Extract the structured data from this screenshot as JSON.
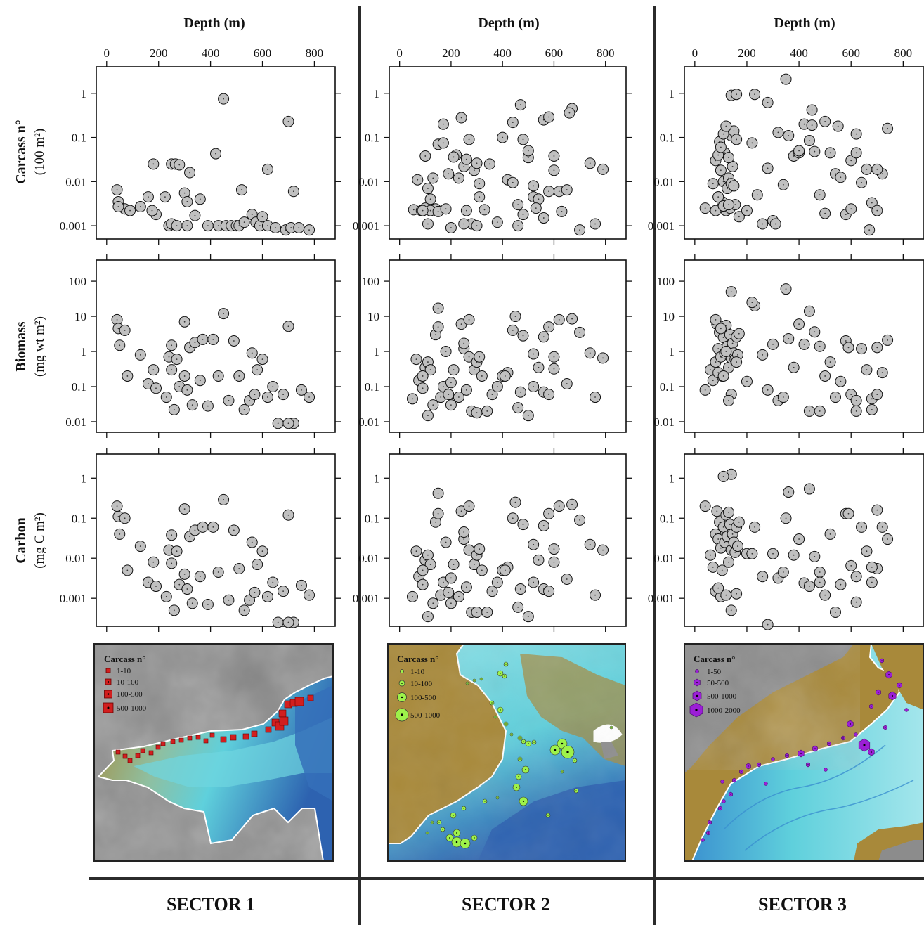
{
  "figure": {
    "x_axis_title": "Depth (m)",
    "x_ticks": [
      "0",
      "200",
      "400",
      "600",
      "800"
    ],
    "sector_labels": [
      "SECTOR 1",
      "SECTOR 2",
      "SECTOR 3"
    ],
    "rows": [
      {
        "label_bold": "Carcass n°",
        "label_unit": "(100 m²)"
      },
      {
        "label_bold": "Biomass",
        "label_unit": "(mg wt m²)"
      },
      {
        "label_bold": "Carbon",
        "label_unit": "(mg C m²)"
      }
    ],
    "map_legend_title": "Carcass n°",
    "map_legends": [
      [
        "1-10",
        "10-100",
        "100-500",
        "500-1000"
      ],
      [
        "1-10",
        "10-100",
        "100-500",
        "500-1000"
      ],
      [
        "1-50",
        "50-500",
        "500-1000",
        "1000-2000"
      ]
    ],
    "colors": {
      "marker_fill": "#c0c0c0",
      "sector1_marker": "#d21f1f",
      "sector2_marker": "#9df24a",
      "sector3_marker": "#9b1fd6",
      "map_land_gray": "#8c8c8c",
      "map_shelf": "#a8893a",
      "map_slope": "#5fd0dc",
      "map_deep": "#2d62b0"
    }
  },
  "chart_data": [
    {
      "type": "scatter",
      "sector": "SECTOR 1",
      "row": "Carcass",
      "ylabel": "Carcass n° (100 m²)",
      "xlabel": "Depth (m)",
      "xlim": [
        -40,
        880
      ],
      "ylim": [
        0.0005,
        4
      ],
      "yscale": "log",
      "yticks": [
        "1",
        "0.1",
        "0.01",
        "0.001"
      ],
      "x": [
        40,
        45,
        70,
        45,
        90,
        130,
        160,
        190,
        175,
        225,
        250,
        265,
        280,
        300,
        310,
        320,
        240,
        250,
        270,
        180,
        310,
        340,
        360,
        390,
        430,
        460,
        480,
        500,
        510,
        530,
        560,
        575,
        590,
        600,
        620,
        650,
        690,
        710,
        740,
        780,
        620,
        720,
        700,
        420,
        520,
        450
      ],
      "y": [
        0.0065,
        0.0035,
        0.0024,
        0.0027,
        0.0022,
        0.0027,
        0.0045,
        0.0018,
        0.0022,
        0.0045,
        0.025,
        0.025,
        0.024,
        0.0055,
        0.0035,
        0.016,
        0.001,
        0.0011,
        0.001,
        0.025,
        0.001,
        0.0017,
        0.004,
        0.001,
        0.001,
        0.001,
        0.001,
        0.001,
        0.001,
        0.0012,
        0.0018,
        0.0012,
        0.001,
        0.0016,
        0.001,
        0.0009,
        0.0008,
        0.0009,
        0.0009,
        0.0008,
        0.019,
        0.006,
        0.23,
        0.043,
        0.0065,
        0.75
      ]
    },
    {
      "type": "scatter",
      "sector": "SECTOR 2",
      "row": "Carcass",
      "ylabel": "Carcass n° (100 m²)",
      "xlabel": "Depth (m)",
      "xlim": [
        -40,
        880
      ],
      "ylim": [
        0.0005,
        4
      ],
      "yscale": "log",
      "yticks": [
        "1",
        "0.1",
        "0.01",
        "0.001"
      ],
      "x": [
        55,
        70,
        85,
        100,
        110,
        120,
        140,
        150,
        170,
        190,
        200,
        220,
        240,
        250,
        260,
        270,
        280,
        300,
        310,
        330,
        350,
        380,
        400,
        420,
        440,
        460,
        480,
        500,
        520,
        540,
        560,
        580,
        600,
        620,
        650,
        670,
        700,
        740,
        760,
        790,
        100,
        120,
        150,
        180,
        230,
        260,
        290,
        310,
        460,
        520,
        580,
        560,
        90,
        130,
        170,
        210,
        250,
        300,
        470,
        500,
        530,
        600,
        630,
        660,
        110,
        440,
        480
      ],
      "y": [
        0.0023,
        0.011,
        0.0022,
        0.0025,
        0.007,
        0.004,
        0.0024,
        0.07,
        0.2,
        0.015,
        0.0009,
        0.04,
        0.28,
        0.022,
        0.0022,
        0.09,
        0.0011,
        0.001,
        0.0045,
        0.0023,
        0.025,
        0.0012,
        0.1,
        0.011,
        0.22,
        0.001,
        0.09,
        0.035,
        0.0045,
        0.004,
        0.25,
        0.29,
        0.018,
        0.006,
        0.0065,
        0.45,
        0.0008,
        0.026,
        0.0011,
        0.019,
        0.038,
        0.0022,
        0.0021,
        0.0024,
        0.012,
        0.032,
        0.018,
        0.009,
        0.003,
        0.008,
        0.006,
        0.0015,
        0.0022,
        0.012,
        0.075,
        0.036,
        0.0011,
        0.026,
        0.55,
        0.05,
        0.0025,
        0.038,
        0.0021,
        0.36,
        0.0011,
        0.0095,
        0.0018
      ]
    },
    {
      "type": "scatter",
      "sector": "SECTOR 3",
      "row": "Carcass",
      "ylabel": "Carcass n° (100 m²)",
      "xlabel": "Depth (m)",
      "xlim": [
        -40,
        880
      ],
      "ylim": [
        0.0005,
        4
      ],
      "yscale": "log",
      "yticks": [
        "1",
        "0.1",
        "0.01",
        "0.001"
      ],
      "x": [
        40,
        70,
        80,
        90,
        95,
        100,
        105,
        110,
        115,
        120,
        125,
        130,
        135,
        140,
        145,
        150,
        155,
        160,
        80,
        90,
        100,
        110,
        120,
        130,
        140,
        150,
        170,
        200,
        220,
        240,
        260,
        280,
        300,
        320,
        340,
        360,
        380,
        400,
        420,
        440,
        460,
        480,
        500,
        520,
        540,
        560,
        580,
        600,
        620,
        640,
        660,
        680,
        700,
        720,
        740,
        350,
        450,
        230,
        140,
        160,
        280,
        310,
        400,
        500,
        550,
        620,
        670,
        700,
        90,
        110,
        130,
        600,
        450
      ],
      "y": [
        0.0025,
        0.009,
        0.03,
        0.0045,
        0.08,
        0.018,
        0.0035,
        0.01,
        0.045,
        0.0022,
        0.007,
        0.012,
        0.0025,
        0.11,
        0.022,
        0.14,
        0.003,
        0.09,
        0.0022,
        0.04,
        0.06,
        0.12,
        0.18,
        0.035,
        0.009,
        0.008,
        0.0016,
        0.0022,
        0.075,
        0.005,
        0.0011,
        0.02,
        0.0013,
        0.13,
        0.0085,
        0.11,
        0.038,
        0.045,
        0.2,
        0.085,
        0.048,
        0.005,
        0.0019,
        0.045,
        0.015,
        0.0125,
        0.0018,
        0.03,
        0.045,
        0.0095,
        0.019,
        0.0033,
        0.0022,
        0.015,
        0.16,
        2.1,
        0.42,
        0.95,
        0.9,
        0.95,
        0.62,
        0.0011,
        0.05,
        0.23,
        0.18,
        0.12,
        0.0008,
        0.019,
        0.0045,
        0.0028,
        0.003,
        0.0024,
        0.19
      ]
    },
    {
      "type": "scatter",
      "sector": "SECTOR 1",
      "row": "Biomass",
      "ylabel": "Biomass (mg wt m²)",
      "xlabel": "Depth (m)",
      "xlim": [
        -40,
        880
      ],
      "ylim": [
        0.005,
        400
      ],
      "yscale": "log",
      "yticks": [
        "100",
        "10",
        "1",
        "0.1",
        "0.01"
      ],
      "x": [
        40,
        45,
        50,
        70,
        80,
        130,
        160,
        180,
        190,
        230,
        240,
        250,
        260,
        270,
        280,
        300,
        310,
        320,
        340,
        360,
        370,
        390,
        410,
        430,
        450,
        470,
        490,
        510,
        530,
        550,
        560,
        570,
        580,
        600,
        620,
        640,
        660,
        680,
        700,
        720,
        750,
        780,
        300,
        250,
        700,
        330
      ],
      "y": [
        8,
        4.5,
        1.5,
        4,
        0.2,
        0.8,
        0.12,
        0.3,
        0.09,
        0.05,
        0.7,
        1.5,
        0.022,
        0.6,
        0.1,
        0.2,
        0.08,
        1.3,
        1.8,
        0.15,
        2.2,
        0.028,
        2.2,
        0.2,
        12,
        0.04,
        2,
        0.2,
        0.022,
        0.04,
        0.9,
        0.06,
        0.3,
        0.6,
        0.05,
        0.1,
        0.009,
        0.06,
        5.2,
        0.009,
        0.08,
        0.05,
        7,
        0.3,
        0.009,
        0.03
      ]
    },
    {
      "type": "scatter",
      "sector": "SECTOR 2",
      "row": "Biomass",
      "ylabel": "Biomass (mg wt m²)",
      "xlabel": "Depth (m)",
      "xlim": [
        -40,
        880
      ],
      "ylim": [
        0.005,
        400
      ],
      "yscale": "log",
      "yticks": [
        "100",
        "10",
        "1",
        "0.1",
        "0.01"
      ],
      "x": [
        50,
        65,
        75,
        90,
        100,
        110,
        120,
        140,
        150,
        160,
        170,
        180,
        190,
        200,
        210,
        230,
        240,
        250,
        260,
        270,
        280,
        290,
        300,
        320,
        340,
        360,
        380,
        400,
        420,
        440,
        460,
        480,
        500,
        520,
        540,
        560,
        580,
        600,
        620,
        650,
        670,
        700,
        740,
        760,
        790,
        150,
        270,
        450,
        580,
        250,
        300,
        470,
        520,
        600,
        110,
        130,
        90,
        200,
        310,
        410,
        560
      ],
      "y": [
        0.045,
        0.6,
        0.15,
        0.09,
        0.35,
        0.5,
        0.3,
        3,
        17,
        0.05,
        0.1,
        1,
        0.06,
        0.13,
        0.3,
        0.05,
        6,
        1.2,
        0.08,
        0.7,
        0.02,
        0.3,
        0.018,
        0.2,
        0.02,
        0.06,
        0.1,
        0.2,
        0.25,
        4,
        0.025,
        2.8,
        0.015,
        0.85,
        0.35,
        0.07,
        0.06,
        0.7,
        8,
        0.12,
        8.5,
        3.5,
        0.9,
        0.05,
        0.65,
        5,
        8,
        10,
        5,
        1.7,
        0.5,
        0.07,
        0.1,
        0.32,
        0.015,
        0.03,
        0.2,
        0.03,
        0.7,
        0.2,
        2.6
      ]
    },
    {
      "type": "scatter",
      "sector": "SECTOR 3",
      "row": "Biomass",
      "ylabel": "Biomass (mg wt m²)",
      "xlabel": "Depth (m)",
      "xlim": [
        -40,
        880
      ],
      "ylim": [
        0.005,
        400
      ],
      "yscale": "log",
      "yticks": [
        "100",
        "10",
        "1",
        "0.1",
        "0.01"
      ],
      "x": [
        40,
        60,
        70,
        80,
        85,
        90,
        95,
        100,
        105,
        110,
        115,
        120,
        125,
        130,
        135,
        140,
        145,
        150,
        155,
        160,
        165,
        170,
        80,
        100,
        120,
        140,
        160,
        200,
        230,
        260,
        280,
        300,
        320,
        340,
        360,
        380,
        400,
        420,
        440,
        460,
        480,
        500,
        520,
        540,
        560,
        580,
        600,
        620,
        640,
        660,
        680,
        700,
        720,
        740,
        140,
        350,
        220,
        440,
        130,
        90,
        110,
        680,
        590,
        620,
        700,
        480
      ],
      "y": [
        0.08,
        0.3,
        0.15,
        0.5,
        6,
        1.2,
        3.5,
        0.7,
        0.2,
        2.5,
        0.9,
        5.5,
        1.4,
        0.35,
        3,
        0.65,
        1.7,
        0.9,
        0.6,
        2.6,
        0.8,
        3.2,
        8,
        4.5,
        1,
        0.06,
        0.5,
        0.14,
        20,
        0.8,
        0.08,
        1.6,
        0.04,
        0.05,
        2.3,
        0.35,
        6,
        1.6,
        14,
        3.6,
        1.4,
        0.2,
        0.5,
        0.05,
        0.14,
        2,
        0.06,
        0.02,
        1.2,
        0.3,
        0.045,
        0.06,
        0.25,
        2.1,
        50,
        60,
        25,
        0.02,
        0.04,
        0.25,
        0.2,
        0.022,
        1.3,
        0.04,
        1.3,
        0.02
      ]
    },
    {
      "type": "scatter",
      "sector": "SECTOR 1",
      "row": "Carbon",
      "ylabel": "Carbon (mg C m²)",
      "xlabel": "Depth (m)",
      "xlim": [
        -40,
        880
      ],
      "ylim": [
        0.0002,
        4
      ],
      "yscale": "log",
      "yticks": [
        "1",
        "0.1",
        "0.01",
        "0.001"
      ],
      "x": [
        40,
        45,
        50,
        70,
        80,
        130,
        160,
        180,
        190,
        230,
        240,
        250,
        260,
        270,
        280,
        300,
        310,
        320,
        340,
        360,
        370,
        390,
        410,
        430,
        450,
        470,
        490,
        510,
        530,
        550,
        560,
        570,
        580,
        600,
        620,
        640,
        660,
        680,
        700,
        720,
        750,
        780,
        300,
        250,
        700,
        330
      ],
      "y": [
        0.2,
        0.11,
        0.04,
        0.1,
        0.005,
        0.02,
        0.0025,
        0.008,
        0.002,
        0.0011,
        0.016,
        0.038,
        0.0005,
        0.015,
        0.0022,
        0.004,
        0.0017,
        0.035,
        0.05,
        0.0035,
        0.06,
        0.0007,
        0.06,
        0.0045,
        0.29,
        0.0009,
        0.05,
        0.0055,
        0.0005,
        0.0009,
        0.025,
        0.0014,
        0.007,
        0.015,
        0.0011,
        0.0025,
        0.00025,
        0.0015,
        0.12,
        0.00025,
        0.0021,
        0.0012,
        0.17,
        0.0075,
        0.00025,
        0.00075
      ]
    },
    {
      "type": "scatter",
      "sector": "SECTOR 2",
      "row": "Carbon",
      "ylabel": "Carbon (mg C m²)",
      "xlabel": "Depth (m)",
      "xlim": [
        -40,
        880
      ],
      "ylim": [
        0.0002,
        4
      ],
      "yscale": "log",
      "yticks": [
        "1",
        "0.1",
        "0.01",
        "0.001"
      ],
      "x": [
        50,
        65,
        75,
        90,
        100,
        110,
        120,
        140,
        150,
        160,
        170,
        180,
        190,
        200,
        210,
        230,
        240,
        250,
        260,
        270,
        280,
        290,
        300,
        320,
        340,
        360,
        380,
        400,
        420,
        440,
        460,
        480,
        500,
        520,
        540,
        560,
        580,
        600,
        620,
        650,
        670,
        700,
        740,
        760,
        790,
        150,
        270,
        450,
        580,
        250,
        300,
        470,
        520,
        600,
        110,
        130,
        90,
        200,
        310,
        410,
        560
      ],
      "y": [
        0.0011,
        0.015,
        0.0035,
        0.0022,
        0.009,
        0.012,
        0.007,
        0.08,
        0.42,
        0.0012,
        0.0025,
        0.025,
        0.0014,
        0.0032,
        0.007,
        0.0011,
        0.15,
        0.03,
        0.0019,
        0.016,
        0.00045,
        0.007,
        0.00045,
        0.005,
        0.00045,
        0.0015,
        0.0025,
        0.005,
        0.006,
        0.1,
        0.0006,
        0.07,
        0.00035,
        0.022,
        0.009,
        0.0017,
        0.0015,
        0.017,
        0.2,
        0.003,
        0.22,
        0.09,
        0.022,
        0.0012,
        0.016,
        0.13,
        0.2,
        0.25,
        0.13,
        0.045,
        0.012,
        0.0017,
        0.0025,
        0.008,
        0.00035,
        0.00075,
        0.005,
        0.00075,
        0.017,
        0.005,
        0.065
      ]
    },
    {
      "type": "scatter",
      "sector": "SECTOR 3",
      "row": "Carbon",
      "ylabel": "Carbon (mg C m²)",
      "xlabel": "Depth (m)",
      "xlim": [
        -40,
        880
      ],
      "ylim": [
        0.0002,
        4
      ],
      "yscale": "log",
      "yticks": [
        "1",
        "0.1",
        "0.01",
        "0.001"
      ],
      "x": [
        40,
        60,
        70,
        80,
        85,
        90,
        95,
        100,
        105,
        110,
        115,
        120,
        125,
        130,
        135,
        140,
        145,
        150,
        155,
        160,
        165,
        170,
        80,
        100,
        120,
        140,
        160,
        200,
        230,
        260,
        280,
        300,
        320,
        340,
        360,
        380,
        400,
        420,
        440,
        460,
        480,
        500,
        520,
        540,
        560,
        580,
        600,
        620,
        640,
        660,
        680,
        700,
        720,
        740,
        140,
        350,
        220,
        440,
        130,
        90,
        110,
        680,
        590,
        620,
        700,
        480
      ],
      "y": [
        0.2,
        0.012,
        0.006,
        0.04,
        0.15,
        0.03,
        0.08,
        0.018,
        0.005,
        0.06,
        0.025,
        0.12,
        0.035,
        0.008,
        0.07,
        0.016,
        0.04,
        0.025,
        0.014,
        0.06,
        0.02,
        0.08,
        0.0015,
        0.0011,
        0.0012,
        0.0005,
        0.0013,
        0.013,
        0.06,
        0.0035,
        0.00022,
        0.013,
        0.0032,
        0.0045,
        0.45,
        0.012,
        0.03,
        0.0024,
        0.54,
        0.011,
        0.0045,
        0.0012,
        0.04,
        0.00045,
        0.0022,
        0.13,
        0.0065,
        0.0035,
        0.06,
        0.015,
        0.0025,
        0.0055,
        0.06,
        0.03,
        1.25,
        0.1,
        0.013,
        0.002,
        0.14,
        0.0018,
        1.1,
        0.006,
        0.13,
        0.0008,
        0.16,
        0.0025
      ]
    }
  ]
}
